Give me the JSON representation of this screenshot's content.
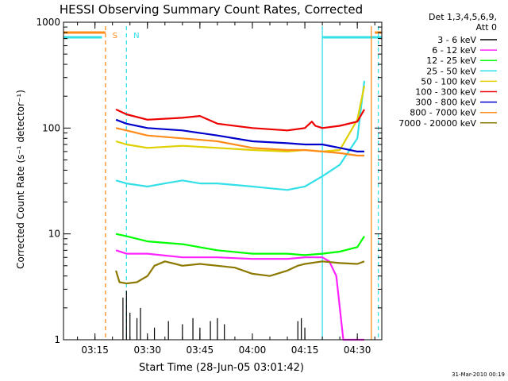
{
  "chart_data": {
    "type": "line",
    "title": "HESSI Observing Summary Count Rates, Corrected",
    "xlabel": "Start Time (28-Jun-05 03:01:42)",
    "ylabel": "Corrected Count Rate (s⁻¹ detector⁻¹)",
    "yscale": "log",
    "ylim": [
      1,
      1000
    ],
    "xlim": [
      "03:06",
      "04:37"
    ],
    "xticks": [
      "03:15",
      "03:30",
      "03:45",
      "04:00",
      "04:15",
      "04:30"
    ],
    "yticks": [
      "1",
      "10",
      "100",
      "1000"
    ],
    "grid": false,
    "legend_placement": "right",
    "legend_title": [
      "Det 1,3,4,5,6,9,",
      "Att 0"
    ],
    "footer": "31-Mar-2010 00:19",
    "annotations": [
      {
        "label": "S",
        "time": "03:15",
        "color": "#ff8c1a"
      },
      {
        "label": "N",
        "time": "03:21",
        "color": "#33e0e8"
      }
    ],
    "top_bars": [
      {
        "color": "#ff8c1a",
        "from": "03:06",
        "to": "03:18"
      },
      {
        "color": "#ff8c1a",
        "from": "04:35",
        "to": "04:37"
      },
      {
        "color": "#33e0e8",
        "from": "03:06",
        "to": "03:17"
      },
      {
        "color": "#33e0e8",
        "from": "04:20",
        "to": "04:37"
      }
    ],
    "vlines": [
      {
        "time": "03:18",
        "color": "#ff8c1a",
        "style": "dashed"
      },
      {
        "time": "03:24",
        "color": "#33e0e8",
        "style": "dashed"
      },
      {
        "time": "04:20",
        "color": "#33e0e8",
        "style": "solid"
      },
      {
        "time": "04:34",
        "color": "#ff8c1a",
        "style": "solid"
      },
      {
        "time": "04:36",
        "color": "#33e0e8",
        "style": "dashed"
      }
    ],
    "series": [
      {
        "name": "3 - 6 keV",
        "color": "#000000",
        "style": "spikes",
        "x": [
          "03:23",
          "03:24",
          "03:25",
          "03:27",
          "03:28",
          "03:32",
          "03:36",
          "03:40",
          "03:43",
          "03:45",
          "03:48",
          "03:50",
          "03:52",
          "04:13",
          "04:14",
          "04:15"
        ],
        "y": [
          2.5,
          2.9,
          1.8,
          1.6,
          2.0,
          1.3,
          1.5,
          1.4,
          1.6,
          1.3,
          1.5,
          1.6,
          1.4,
          1.5,
          1.6,
          1.3
        ]
      },
      {
        "name": "6 - 12 keV",
        "color": "#ff22ff",
        "style": "line",
        "x": [
          "03:21",
          "03:24",
          "03:30",
          "03:40",
          "03:50",
          "04:00",
          "04:10",
          "04:15",
          "04:20",
          "04:22",
          "04:24",
          "04:26",
          "04:30",
          "04:32"
        ],
        "y": [
          7.0,
          6.5,
          6.5,
          6.0,
          6.0,
          5.8,
          5.8,
          6.0,
          6.0,
          5.5,
          4.0,
          1.0,
          1.0,
          1.0
        ]
      },
      {
        "name": "12 - 25 keV",
        "color": "#00ff00",
        "style": "line",
        "x": [
          "03:21",
          "03:24",
          "03:30",
          "03:40",
          "03:50",
          "04:00",
          "04:10",
          "04:15",
          "04:20",
          "04:25",
          "04:30",
          "04:32"
        ],
        "y": [
          10.0,
          9.5,
          8.5,
          8.0,
          7.0,
          6.5,
          6.5,
          6.3,
          6.5,
          6.8,
          7.5,
          9.5
        ]
      },
      {
        "name": "25 - 50 keV",
        "color": "#33e0e8",
        "style": "line",
        "x": [
          "03:21",
          "03:24",
          "03:30",
          "03:35",
          "03:40",
          "03:45",
          "03:50",
          "03:55",
          "04:00",
          "04:05",
          "04:10",
          "04:15",
          "04:20",
          "04:25",
          "04:30",
          "04:32"
        ],
        "y": [
          32,
          30,
          28,
          30,
          32,
          30,
          30,
          29,
          28,
          27,
          26,
          28,
          35,
          45,
          80,
          280
        ]
      },
      {
        "name": "50 - 100 keV",
        "color": "#e0d000",
        "style": "line",
        "x": [
          "03:21",
          "03:24",
          "03:30",
          "03:40",
          "03:50",
          "04:00",
          "04:10",
          "04:15",
          "04:20",
          "04:25",
          "04:30",
          "04:32"
        ],
        "y": [
          75,
          70,
          65,
          68,
          65,
          62,
          60,
          62,
          60,
          62,
          120,
          250
        ]
      },
      {
        "name": "100 - 300 keV",
        "color": "#ee0000",
        "style": "line",
        "x": [
          "03:21",
          "03:24",
          "03:30",
          "03:40",
          "03:45",
          "03:50",
          "04:00",
          "04:10",
          "04:15",
          "04:17",
          "04:18",
          "04:20",
          "04:25",
          "04:30",
          "04:32"
        ],
        "y": [
          150,
          135,
          120,
          125,
          130,
          110,
          100,
          95,
          100,
          115,
          105,
          100,
          105,
          115,
          150
        ]
      },
      {
        "name": "300 - 800 keV",
        "color": "#0000cc",
        "style": "line",
        "x": [
          "03:21",
          "03:24",
          "03:30",
          "03:40",
          "03:50",
          "04:00",
          "04:10",
          "04:15",
          "04:20",
          "04:25",
          "04:30",
          "04:32"
        ],
        "y": [
          120,
          110,
          100,
          95,
          85,
          75,
          72,
          70,
          70,
          65,
          60,
          60
        ]
      },
      {
        "name": "800 - 7000 keV",
        "color": "#ff8c1a",
        "style": "line",
        "x": [
          "03:21",
          "03:24",
          "03:30",
          "03:40",
          "03:50",
          "04:00",
          "04:10",
          "04:15",
          "04:20",
          "04:25",
          "04:30",
          "04:32"
        ],
        "y": [
          100,
          95,
          85,
          80,
          75,
          65,
          62,
          62,
          60,
          58,
          55,
          55
        ]
      },
      {
        "name": "7000 - 20000 keV",
        "color": "#8c7a00",
        "style": "line",
        "x": [
          "03:21",
          "03:22",
          "03:24",
          "03:27",
          "03:30",
          "03:32",
          "03:35",
          "03:38",
          "03:40",
          "03:45",
          "03:50",
          "03:55",
          "04:00",
          "04:05",
          "04:10",
          "04:13",
          "04:15",
          "04:20",
          "04:25",
          "04:30",
          "04:32"
        ],
        "y": [
          4.5,
          3.5,
          3.4,
          3.5,
          4.0,
          5.0,
          5.5,
          5.2,
          5.0,
          5.2,
          5.0,
          4.8,
          4.2,
          4.0,
          4.5,
          5.0,
          5.2,
          5.5,
          5.3,
          5.2,
          5.5
        ]
      }
    ]
  }
}
